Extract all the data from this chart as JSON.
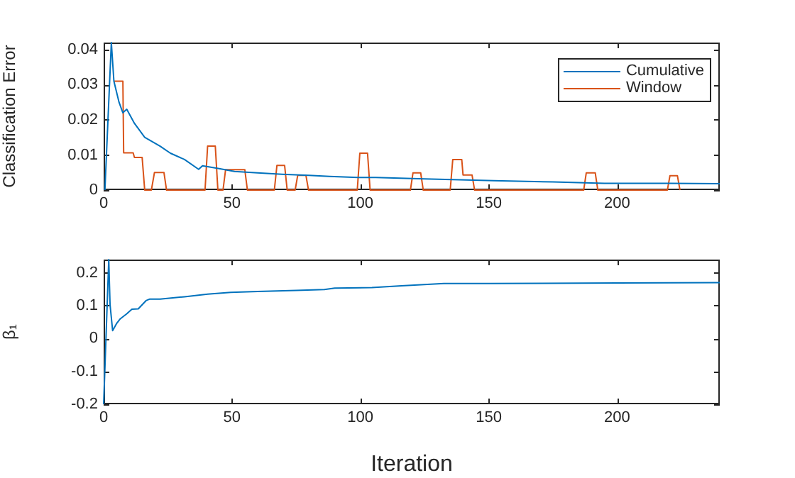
{
  "chart_data": [
    {
      "type": "line",
      "ylabel": "Classification Error",
      "xlim": [
        0,
        240
      ],
      "xticks": [
        0,
        50,
        100,
        150,
        200
      ],
      "ylim": [
        0,
        0.042
      ],
      "yticks": [
        0,
        0.01,
        0.02,
        0.03,
        0.04
      ],
      "grid": false,
      "legend": "top right",
      "series": [
        {
          "name": "Cumulative",
          "color": "#0072bd",
          "x": [
            0.5,
            3,
            4,
            6,
            7.5,
            9,
            12,
            16,
            22,
            26,
            31.5,
            37,
            38.5,
            45,
            51,
            60,
            69.5,
            80,
            88,
            99,
            106,
            125,
            152,
            175,
            195,
            220,
            240
          ],
          "values": [
            0,
            0.042,
            0.031,
            0.025,
            0.022,
            0.023,
            0.019,
            0.015,
            0.0125,
            0.0105,
            0.0087,
            0.0059,
            0.0069,
            0.0061,
            0.0053,
            0.0049,
            0.0045,
            0.0042,
            0.0039,
            0.0036,
            0.0036,
            0.0032,
            0.0027,
            0.0023,
            0.0019,
            0.0019,
            0.0018
          ]
        },
        {
          "name": "Window",
          "color": "#d95319",
          "x": [
            4,
            7.5,
            7.8,
            11.5,
            12,
            15,
            16,
            18.6,
            19.8,
            23.5,
            24.5,
            39.5,
            40.5,
            43.5,
            44.5,
            46.5,
            47.5,
            55,
            56,
            66.5,
            67.5,
            70.5,
            71.5,
            74.6,
            75.6,
            78.8,
            79.8,
            98.8,
            99.8,
            102.8,
            103.8,
            119.5,
            120.5,
            123.5,
            124.5,
            135,
            136,
            139.5,
            140,
            143.5,
            144.5,
            187,
            188,
            191.5,
            192.5,
            219.6,
            220.6,
            223.5,
            224.5
          ],
          "values": [
            0.031,
            0.031,
            0.0106,
            0.0106,
            0.0093,
            0.0093,
            0,
            0,
            0.005,
            0.005,
            0,
            0,
            0.0125,
            0.0125,
            0,
            0,
            0.0058,
            0.0058,
            0,
            0,
            0.007,
            0.007,
            0,
            0,
            0.0042,
            0.0042,
            0,
            0,
            0.0105,
            0.0105,
            0,
            0,
            0.0049,
            0.0049,
            0,
            0,
            0.0087,
            0.0087,
            0.0043,
            0.0043,
            0,
            0,
            0.0049,
            0.0049,
            0,
            0,
            0.0041,
            0.0041,
            0
          ]
        }
      ]
    },
    {
      "type": "line",
      "xlabel": "Iteration",
      "ylabel": "β₁",
      "xlim": [
        0,
        240
      ],
      "xticks": [
        0,
        50,
        100,
        150,
        200
      ],
      "ylim": [
        -0.2,
        0.24
      ],
      "yticks": [
        -0.2,
        -0.1,
        0,
        0.1,
        0.2
      ],
      "grid": false,
      "series": [
        {
          "color": "#0072bd",
          "x": [
            0,
            2,
            2.5,
            3.5,
            5,
            6.5,
            9,
            11,
            13.5,
            16.5,
            18,
            22,
            31.5,
            40.5,
            49.5,
            60,
            75,
            86,
            90,
            104.5,
            116,
            132.5,
            150,
            171,
            200,
            240
          ],
          "values": [
            -0.2,
            0.24,
            0.103,
            0.024,
            0.045,
            0.06,
            0.075,
            0.089,
            0.09,
            0.115,
            0.12,
            0.12,
            0.127,
            0.135,
            0.14,
            0.143,
            0.146,
            0.149,
            0.153,
            0.155,
            0.16,
            0.167,
            0.167,
            0.168,
            0.169,
            0.17
          ]
        }
      ]
    }
  ]
}
